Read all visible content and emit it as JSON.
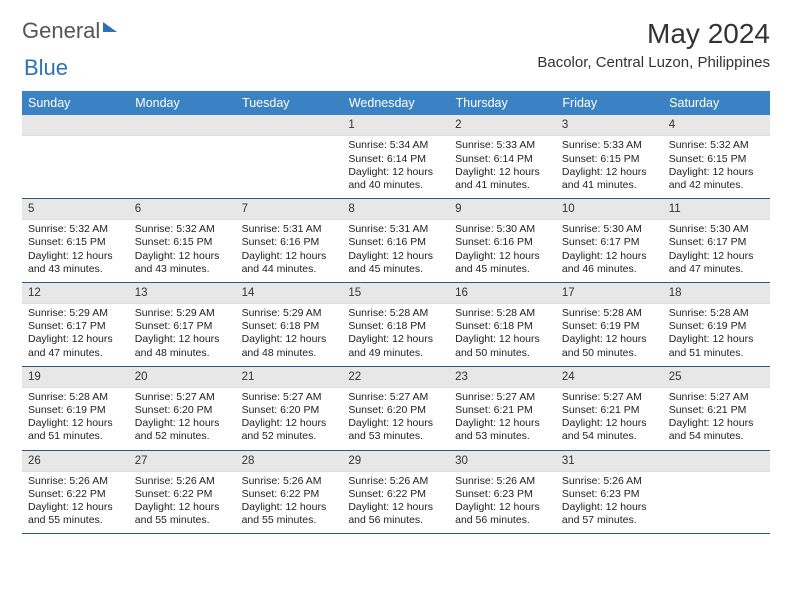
{
  "brand": {
    "part1": "General",
    "part2": "Blue"
  },
  "title": "May 2024",
  "location": "Bacolor, Central Luzon, Philippines",
  "weekdays": [
    "Sunday",
    "Monday",
    "Tuesday",
    "Wednesday",
    "Thursday",
    "Friday",
    "Saturday"
  ],
  "colors": {
    "header_bg": "#3b82c4",
    "rule": "#2a5a8a",
    "daynum_bg": "#e7e7e7",
    "brand_blue": "#2a73b8",
    "text": "#222222"
  },
  "layout": {
    "first_weekday_index": 3,
    "days_in_month": 31
  },
  "days": {
    "1": {
      "sunrise": "5:34 AM",
      "sunset": "6:14 PM",
      "daylight": "12 hours and 40 minutes."
    },
    "2": {
      "sunrise": "5:33 AM",
      "sunset": "6:14 PM",
      "daylight": "12 hours and 41 minutes."
    },
    "3": {
      "sunrise": "5:33 AM",
      "sunset": "6:15 PM",
      "daylight": "12 hours and 41 minutes."
    },
    "4": {
      "sunrise": "5:32 AM",
      "sunset": "6:15 PM",
      "daylight": "12 hours and 42 minutes."
    },
    "5": {
      "sunrise": "5:32 AM",
      "sunset": "6:15 PM",
      "daylight": "12 hours and 43 minutes."
    },
    "6": {
      "sunrise": "5:32 AM",
      "sunset": "6:15 PM",
      "daylight": "12 hours and 43 minutes."
    },
    "7": {
      "sunrise": "5:31 AM",
      "sunset": "6:16 PM",
      "daylight": "12 hours and 44 minutes."
    },
    "8": {
      "sunrise": "5:31 AM",
      "sunset": "6:16 PM",
      "daylight": "12 hours and 45 minutes."
    },
    "9": {
      "sunrise": "5:30 AM",
      "sunset": "6:16 PM",
      "daylight": "12 hours and 45 minutes."
    },
    "10": {
      "sunrise": "5:30 AM",
      "sunset": "6:17 PM",
      "daylight": "12 hours and 46 minutes."
    },
    "11": {
      "sunrise": "5:30 AM",
      "sunset": "6:17 PM",
      "daylight": "12 hours and 47 minutes."
    },
    "12": {
      "sunrise": "5:29 AM",
      "sunset": "6:17 PM",
      "daylight": "12 hours and 47 minutes."
    },
    "13": {
      "sunrise": "5:29 AM",
      "sunset": "6:17 PM",
      "daylight": "12 hours and 48 minutes."
    },
    "14": {
      "sunrise": "5:29 AM",
      "sunset": "6:18 PM",
      "daylight": "12 hours and 48 minutes."
    },
    "15": {
      "sunrise": "5:28 AM",
      "sunset": "6:18 PM",
      "daylight": "12 hours and 49 minutes."
    },
    "16": {
      "sunrise": "5:28 AM",
      "sunset": "6:18 PM",
      "daylight": "12 hours and 50 minutes."
    },
    "17": {
      "sunrise": "5:28 AM",
      "sunset": "6:19 PM",
      "daylight": "12 hours and 50 minutes."
    },
    "18": {
      "sunrise": "5:28 AM",
      "sunset": "6:19 PM",
      "daylight": "12 hours and 51 minutes."
    },
    "19": {
      "sunrise": "5:28 AM",
      "sunset": "6:19 PM",
      "daylight": "12 hours and 51 minutes."
    },
    "20": {
      "sunrise": "5:27 AM",
      "sunset": "6:20 PM",
      "daylight": "12 hours and 52 minutes."
    },
    "21": {
      "sunrise": "5:27 AM",
      "sunset": "6:20 PM",
      "daylight": "12 hours and 52 minutes."
    },
    "22": {
      "sunrise": "5:27 AM",
      "sunset": "6:20 PM",
      "daylight": "12 hours and 53 minutes."
    },
    "23": {
      "sunrise": "5:27 AM",
      "sunset": "6:21 PM",
      "daylight": "12 hours and 53 minutes."
    },
    "24": {
      "sunrise": "5:27 AM",
      "sunset": "6:21 PM",
      "daylight": "12 hours and 54 minutes."
    },
    "25": {
      "sunrise": "5:27 AM",
      "sunset": "6:21 PM",
      "daylight": "12 hours and 54 minutes."
    },
    "26": {
      "sunrise": "5:26 AM",
      "sunset": "6:22 PM",
      "daylight": "12 hours and 55 minutes."
    },
    "27": {
      "sunrise": "5:26 AM",
      "sunset": "6:22 PM",
      "daylight": "12 hours and 55 minutes."
    },
    "28": {
      "sunrise": "5:26 AM",
      "sunset": "6:22 PM",
      "daylight": "12 hours and 55 minutes."
    },
    "29": {
      "sunrise": "5:26 AM",
      "sunset": "6:22 PM",
      "daylight": "12 hours and 56 minutes."
    },
    "30": {
      "sunrise": "5:26 AM",
      "sunset": "6:23 PM",
      "daylight": "12 hours and 56 minutes."
    },
    "31": {
      "sunrise": "5:26 AM",
      "sunset": "6:23 PM",
      "daylight": "12 hours and 57 minutes."
    }
  },
  "labels": {
    "sunrise": "Sunrise:",
    "sunset": "Sunset:",
    "daylight": "Daylight:"
  }
}
